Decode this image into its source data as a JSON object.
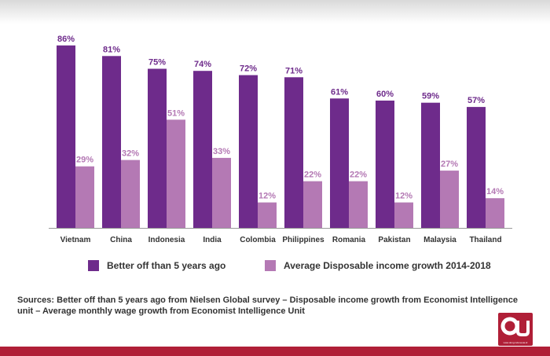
{
  "chart_data": {
    "type": "bar",
    "categories": [
      "Vietnam",
      "China",
      "Indonesia",
      "India",
      "Colombia",
      "Philippines",
      "Romania",
      "Pakistan",
      "Malaysia",
      "Thailand"
    ],
    "series": [
      {
        "name": "Better off than 5 years ago",
        "color": "#6e2b8b",
        "values": [
          86,
          81,
          75,
          74,
          72,
          71,
          61,
          60,
          59,
          57
        ],
        "labels": [
          "86%",
          "81%",
          "75%",
          "74%",
          "72%",
          "71%",
          "61%",
          "60%",
          "59%",
          "57%"
        ]
      },
      {
        "name": "Average Disposable income growth 2014-2018",
        "color": "#b479b4",
        "values": [
          29,
          32,
          51,
          33,
          12,
          22,
          22,
          12,
          27,
          14
        ],
        "labels": [
          "29%",
          "32%",
          "51%",
          "33%",
          "12%",
          "22%",
          "22%",
          "12%",
          "27%",
          "14%"
        ]
      }
    ],
    "ylim": [
      0,
      100
    ],
    "grid": false,
    "legend_position": "bottom"
  },
  "source_note": "Sources: Better off than 5 years ago from Nielsen Global survey – Disposable income growth from Economist  Intelligence  unit – Average monthly wage growth from Economist Intelligence Unit",
  "logo": {
    "caption": "www.dong.indonesia.id",
    "brand_color": "#b01f37"
  }
}
